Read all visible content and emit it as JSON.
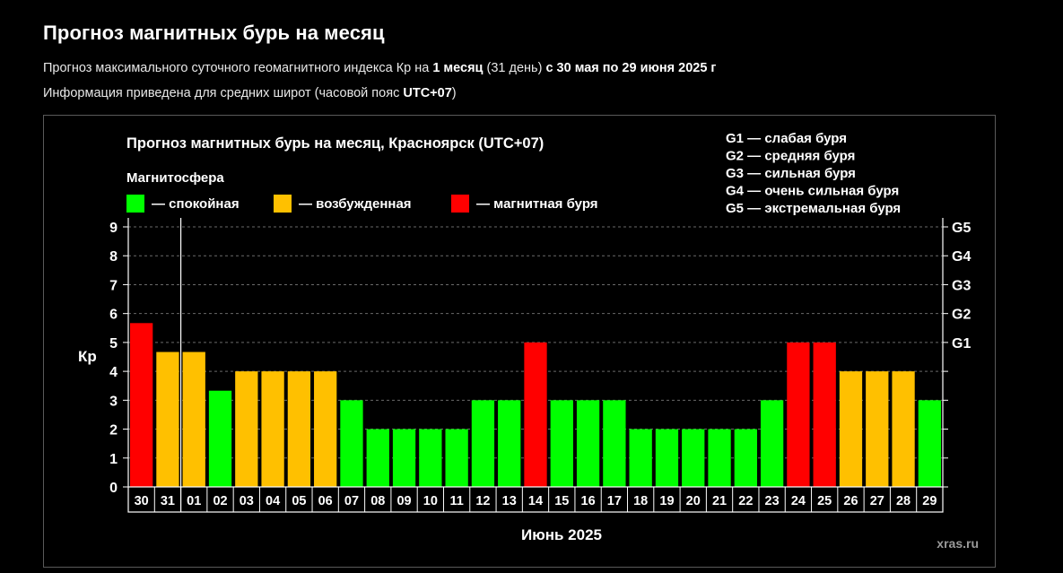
{
  "header": {
    "title": "Прогноз магнитных бурь на месяц",
    "line1": {
      "pre": "Прогноз максимального суточного геомагнитного индекса Кр на ",
      "bold1": "1 месяц",
      "mid": " (31 день) ",
      "bold2": "с 30 мая по 29 июня 2025 г"
    },
    "line2": {
      "pre": "Информация приведена для средних широт (часовой пояс ",
      "bold": "UTC+07",
      "post": ")"
    }
  },
  "chart_data": {
    "type": "bar",
    "title": "Прогноз магнитных бурь на месяц, Красноярск (UTC+07)",
    "legend_title": "Магнитосфера",
    "legend": [
      {
        "label": "— спокойная",
        "color": "#00ff00"
      },
      {
        "label": "— возбужденная",
        "color": "#ffc000"
      },
      {
        "label": "— магнитная буря",
        "color": "#ff0000"
      }
    ],
    "g_legend": [
      "G1 — слабая буря",
      "G2 — средняя буря",
      "G3 — сильная буря",
      "G4 — очень сильная буря",
      "G5 — экстремальная буря"
    ],
    "categories": [
      "30",
      "31",
      "01",
      "02",
      "03",
      "04",
      "05",
      "06",
      "07",
      "08",
      "09",
      "10",
      "11",
      "12",
      "13",
      "14",
      "15",
      "16",
      "17",
      "18",
      "19",
      "20",
      "21",
      "22",
      "23",
      "24",
      "25",
      "26",
      "27",
      "28",
      "29"
    ],
    "values": [
      5.67,
      4.67,
      4.67,
      3.33,
      4,
      4,
      4,
      4,
      3,
      2,
      2,
      2,
      2,
      3,
      3,
      5,
      3,
      3,
      3,
      2,
      2,
      2,
      2,
      2,
      3,
      5,
      5,
      4,
      4,
      4,
      3
    ],
    "levels": [
      "storm",
      "excited",
      "excited",
      "calm",
      "excited",
      "excited",
      "excited",
      "excited",
      "calm",
      "calm",
      "calm",
      "calm",
      "calm",
      "calm",
      "calm",
      "storm",
      "calm",
      "calm",
      "calm",
      "calm",
      "calm",
      "calm",
      "calm",
      "calm",
      "calm",
      "storm",
      "storm",
      "excited",
      "excited",
      "excited",
      "calm"
    ],
    "colors": {
      "calm": "#00ff00",
      "excited": "#ffc000",
      "storm": "#ff0000"
    },
    "ylabel": "Кр",
    "ylim": [
      0,
      9
    ],
    "yticks": [
      "0",
      "1",
      "2",
      "3",
      "4",
      "5",
      "6",
      "7",
      "8",
      "9"
    ],
    "right_ticks": [
      {
        "kp": 5,
        "label": "G1"
      },
      {
        "kp": 6,
        "label": "G2"
      },
      {
        "kp": 7,
        "label": "G3"
      },
      {
        "kp": 8,
        "label": "G4"
      },
      {
        "kp": 9,
        "label": "G5"
      }
    ],
    "xlabel": "Июнь 2025",
    "grid": "horizontal dashed",
    "month_divider_after": "31",
    "watermark": "xras.ru"
  }
}
